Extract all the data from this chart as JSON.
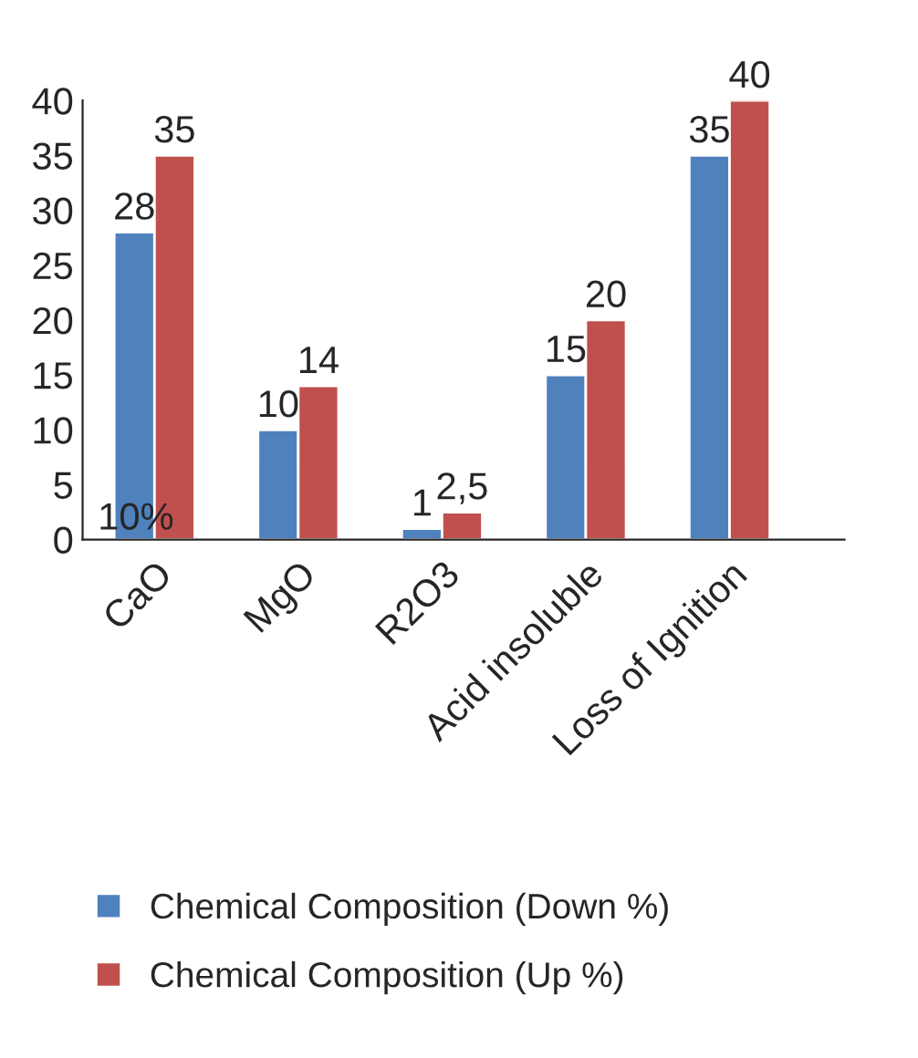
{
  "chart_data": {
    "type": "bar",
    "categories": [
      "CaO",
      "MgO",
      "R2O3",
      "Acid insoluble",
      "Loss of Ignition"
    ],
    "series": [
      {
        "name": "Chemical Composition (Down %)",
        "color": "#4f81bd",
        "values": [
          28,
          10,
          1,
          15,
          35
        ],
        "value_labels": [
          "28",
          "10",
          "1",
          "15",
          "35"
        ]
      },
      {
        "name": "Chemical Composition (Up %)",
        "color": "#c0504d",
        "values": [
          35,
          14,
          2.5,
          20,
          40
        ],
        "value_labels": [
          "35",
          "14",
          "2,5",
          "20",
          "40"
        ]
      }
    ],
    "ylim": [
      0,
      40
    ],
    "yticks": [
      0,
      5,
      10,
      15,
      20,
      25,
      30,
      35,
      40
    ],
    "annotations": [
      "10%"
    ],
    "grid": false,
    "legend": "bottom"
  }
}
